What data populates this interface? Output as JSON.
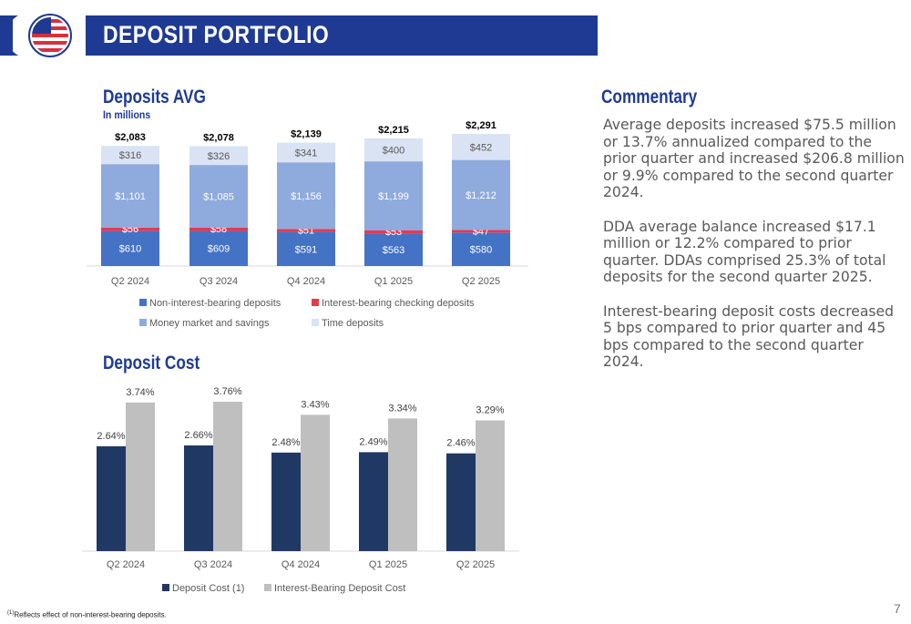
{
  "header": {
    "title": "DEPOSIT PORTFOLIO"
  },
  "deposits_section": {
    "title": "Deposits AVG",
    "subtitle": "In millions"
  },
  "cost_section": {
    "title": "Deposit Cost"
  },
  "commentary": {
    "title": "Commentary",
    "paragraphs": [
      "Average deposits increased $75.5 million or 13.7% annualized compared to the prior quarter and increased $206.8 million or 9.9% compared to the second quarter 2024.",
      "DDA average balance increased $17.1 million or 12.2% compared to prior quarter. DDAs comprised 25.3% of total deposits for the second quarter 2025.",
      "Interest-bearing deposit costs decreased 5 bps compared to prior quarter and 45 bps compared to the second quarter 2024."
    ]
  },
  "footnote": {
    "marker": "(1)",
    "text": "Reflects effect of non-interest-bearing deposits."
  },
  "page_number": "7",
  "colors": {
    "brand_blue": "#1f3a93",
    "non_interest": "#4472c4",
    "interest_checking": "#e8394a",
    "money_market": "#8faadc",
    "time_deposits": "#dae3f3",
    "deposit_cost": "#203864",
    "ib_cost": "#bfbfbf"
  },
  "chart_data": [
    {
      "type": "bar",
      "stacked": true,
      "title": "Deposits AVG",
      "subtitle": "In millions",
      "categories": [
        "Q2 2024",
        "Q3 2024",
        "Q4 2024",
        "Q1 2025",
        "Q2 2025"
      ],
      "series": [
        {
          "name": "Non-interest-bearing deposits",
          "values": [
            610,
            609,
            591,
            563,
            580
          ],
          "labels": [
            "$610",
            "$609",
            "$591",
            "$563",
            "$580"
          ],
          "color": "#4472c4"
        },
        {
          "name": "Interest-bearing checking deposits",
          "values": [
            56,
            58,
            51,
            53,
            47
          ],
          "labels": [
            "$56",
            "$58",
            "$51",
            "$53",
            "$47"
          ],
          "color": "#e8394a"
        },
        {
          "name": "Money market and savings",
          "values": [
            1101,
            1085,
            1156,
            1199,
            1212
          ],
          "labels": [
            "$1,101",
            "$1,085",
            "$1,156",
            "$1,199",
            "$1,212"
          ],
          "color": "#8faadc"
        },
        {
          "name": "Time deposits",
          "values": [
            316,
            326,
            341,
            400,
            452
          ],
          "labels": [
            "$316",
            "$326",
            "$341",
            "$400",
            "$452"
          ],
          "color": "#dae3f3"
        }
      ],
      "totals": [
        "$2,083",
        "$2,078",
        "$2,139",
        "$2,215",
        "$2,291"
      ],
      "legend": "bottom",
      "grid": false
    },
    {
      "type": "bar",
      "title": "Deposit Cost",
      "categories": [
        "Q2 2024",
        "Q3 2024",
        "Q4 2024",
        "Q1 2025",
        "Q2 2025"
      ],
      "series": [
        {
          "name": "Deposit Cost (1)",
          "values": [
            2.64,
            2.66,
            2.48,
            2.49,
            2.46
          ],
          "labels": [
            "2.64%",
            "2.66%",
            "2.48%",
            "2.49%",
            "2.46%"
          ],
          "color": "#203864"
        },
        {
          "name": "Interest-Bearing Deposit Cost",
          "values": [
            3.74,
            3.76,
            3.43,
            3.34,
            3.29
          ],
          "labels": [
            "3.74%",
            "3.76%",
            "3.43%",
            "3.34%",
            "3.29%"
          ],
          "color": "#bfbfbf"
        }
      ],
      "legend": "bottom",
      "grid": false
    }
  ]
}
